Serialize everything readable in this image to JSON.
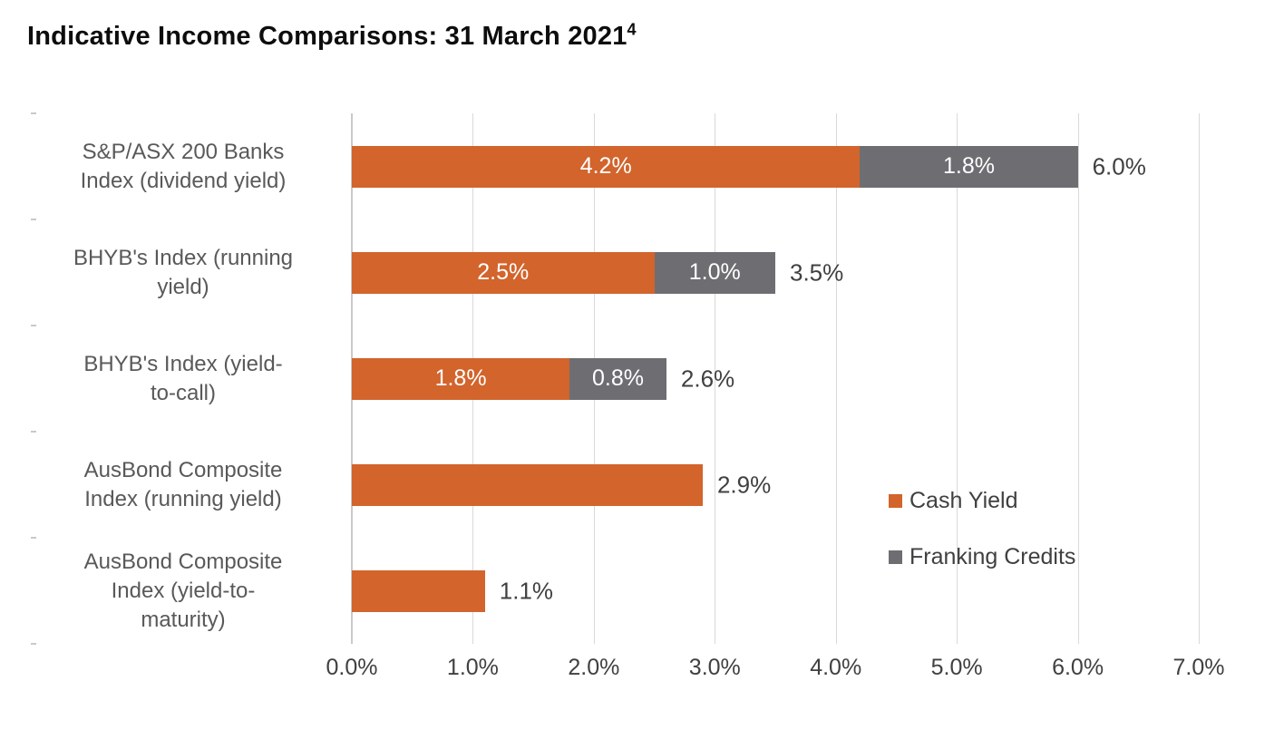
{
  "page": {
    "title": "Indicative Income Comparisons: 31 March 2021",
    "title_superscript": "4"
  },
  "chart_data": {
    "type": "bar",
    "orientation": "horizontal",
    "stacked": true,
    "title": "Indicative Income Comparisons: 31 March 2021",
    "xlabel": "",
    "ylabel": "",
    "xlim": [
      0,
      7
    ],
    "grid": true,
    "categories": [
      "S&P/ASX 200 Banks Index (dividend yield)",
      "BHYB's Index (running yield)",
      "BHYB's Index (yield-to-call)",
      "AusBond Composite Index (running yield)",
      "AusBond Composite Index (yield-to-maturity)"
    ],
    "category_lines": [
      [
        "S&P/ASX 200 Banks",
        "Index (dividend yield)"
      ],
      [
        "BHYB's Index (running",
        "yield)"
      ],
      [
        "BHYB's Index (yield-",
        "to-call)"
      ],
      [
        "AusBond Composite",
        "Index (running yield)"
      ],
      [
        "AusBond Composite",
        "Index (yield-to-",
        "maturity)"
      ]
    ],
    "series": [
      {
        "name": "Cash Yield",
        "color": "#d2642c",
        "values": [
          4.2,
          2.5,
          1.8,
          2.9,
          1.1
        ]
      },
      {
        "name": "Franking Credits",
        "color": "#6e6e72",
        "values": [
          1.8,
          1.0,
          0.8,
          0,
          0
        ]
      }
    ],
    "segment_labels": [
      [
        "4.2%",
        "1.8%"
      ],
      [
        "2.5%",
        "1.0%"
      ],
      [
        "1.8%",
        "0.8%"
      ],
      [
        "",
        ""
      ],
      [
        "",
        ""
      ]
    ],
    "totals": [
      "6.0%",
      "3.5%",
      "2.6%",
      "2.9%",
      "1.1%"
    ],
    "x_ticks": [
      "0.0%",
      "1.0%",
      "2.0%",
      "3.0%",
      "4.0%",
      "5.0%",
      "6.0%",
      "7.0%"
    ],
    "legend": {
      "position": "inside-right",
      "items": [
        {
          "label": "Cash Yield",
          "color": "#d2642c"
        },
        {
          "label": "Franking Credits",
          "color": "#6e6e72"
        }
      ]
    }
  }
}
